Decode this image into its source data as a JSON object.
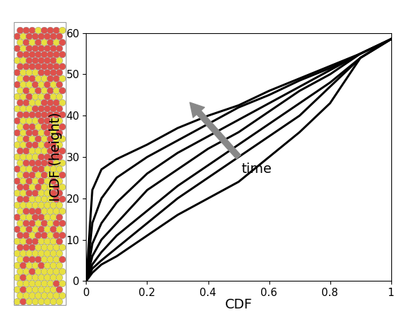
{
  "chart_data": {
    "type": "line",
    "xlabel": "CDF",
    "ylabel": "ICDF (height)",
    "annotation": "time",
    "x": [
      0,
      0.02,
      0.05,
      0.1,
      0.2,
      0.3,
      0.4,
      0.5,
      0.6,
      0.7,
      0.8,
      0.9,
      1.0
    ],
    "series": [
      {
        "color": "#000000",
        "values": [
          0,
          22,
          27,
          29.5,
          33,
          37,
          40,
          42.5,
          46,
          49,
          52,
          55,
          58.5
        ]
      },
      {
        "color": "#000000",
        "values": [
          0,
          14,
          20,
          25,
          30,
          34,
          38,
          42,
          45,
          48.5,
          51.5,
          55,
          58.5
        ]
      },
      {
        "color": "#000000",
        "values": [
          0,
          9,
          14,
          19,
          26,
          31,
          35,
          39,
          43,
          47,
          51,
          55,
          58.5
        ]
      },
      {
        "color": "#000000",
        "values": [
          0,
          6,
          10,
          14,
          22,
          27,
          32,
          36,
          41,
          46,
          50,
          55,
          58.5
        ]
      },
      {
        "color": "#000000",
        "values": [
          0,
          4,
          7,
          11,
          17,
          23,
          28,
          33,
          38,
          43,
          48,
          54,
          58.5
        ]
      },
      {
        "color": "#000000",
        "values": [
          0,
          3,
          5,
          8,
          14,
          20,
          25,
          30,
          35,
          40,
          47,
          54,
          58.5
        ]
      },
      {
        "color": "#000000",
        "values": [
          0,
          2,
          4,
          6,
          11,
          16,
          20,
          24,
          30,
          36,
          43,
          54,
          58.5
        ]
      }
    ],
    "xlim": [
      0,
      1
    ],
    "xticks": [
      0,
      0.2,
      0.4,
      0.6,
      0.8,
      1
    ],
    "ylim": [
      0,
      60
    ],
    "yticks": [
      0,
      10,
      20,
      30,
      40,
      50,
      60
    ],
    "grid": false
  }
}
